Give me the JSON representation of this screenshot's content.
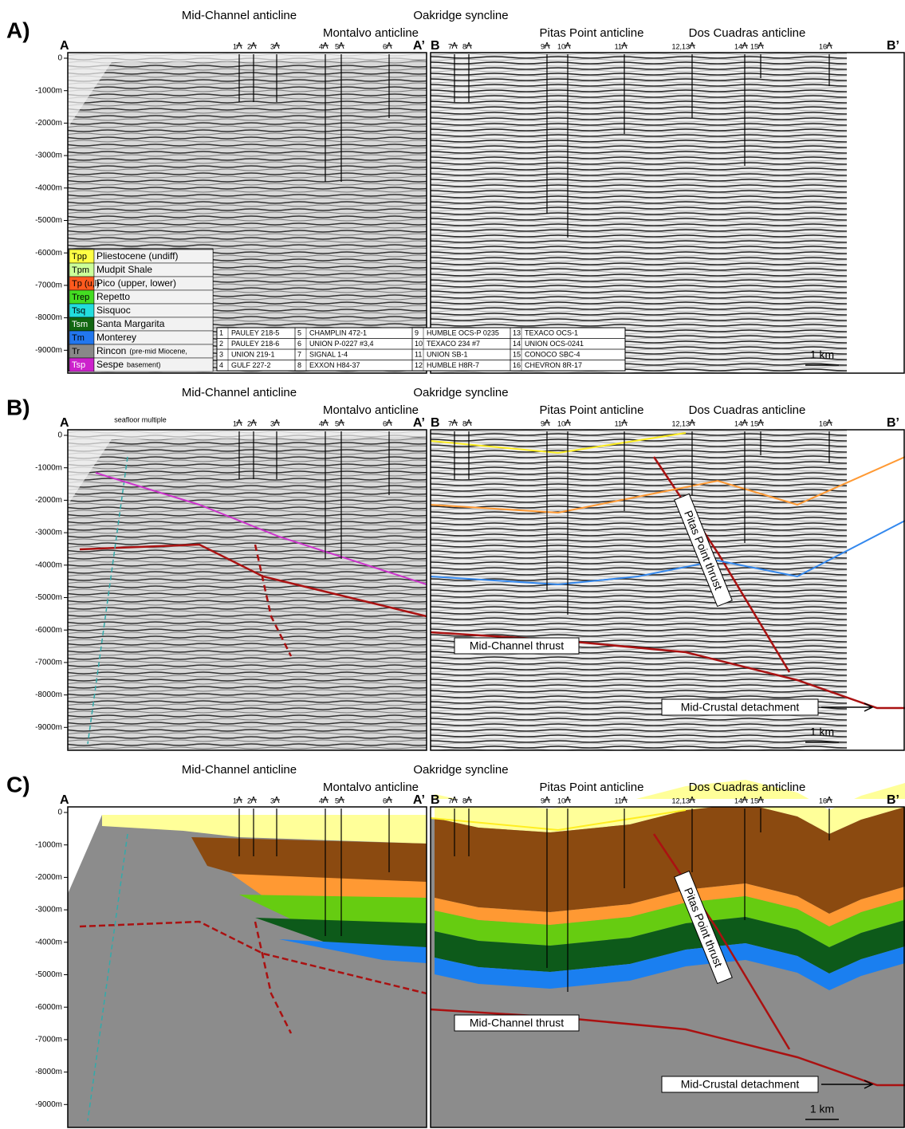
{
  "figure": {
    "panels": [
      {
        "label": "A)"
      },
      {
        "label": "B)"
      },
      {
        "label": "C)"
      }
    ],
    "structures": [
      "Mid-Channel anticline",
      "Montalvo anticline",
      "Oakridge syncline",
      "Pitas Point anticline",
      "Dos Cuadras anticline"
    ],
    "section_ends": [
      "A",
      "A’",
      "B",
      "B’"
    ],
    "depth_ticks": [
      "0",
      "-1000m",
      "-2000m",
      "-3000m",
      "-4000m",
      "-5000m",
      "-6000m",
      "-7000m",
      "-8000m",
      "-9000m"
    ],
    "wells": [
      "1",
      "2",
      "3",
      "4",
      "5",
      "6",
      "7",
      "8",
      "9",
      "10",
      "11",
      "12,13",
      "14",
      "15",
      "16"
    ],
    "scale_bar": "1 km",
    "annotations": {
      "seafloor_multiple": "seafloor multiple",
      "mid_channel_thrust": "Mid-Channel thrust",
      "pitas_point_thrust": "Pitas Point thrust",
      "mid_crustal_detachment": "Mid-Crustal detachment"
    },
    "legend": [
      {
        "code": "Tpp",
        "name": "Pliestocene (undiff)",
        "color": "#ffff44"
      },
      {
        "code": "Tpm",
        "name": "Mudpit Shale",
        "color": "#ccff99"
      },
      {
        "code": "Tp (u,l)",
        "name": "Pico (upper, lower)",
        "color": "#ff5a1e"
      },
      {
        "code": "Trep",
        "name": "Repetto",
        "color": "#44dd22"
      },
      {
        "code": "Tsq",
        "name": "Sisquoc",
        "color": "#22dddd"
      },
      {
        "code": "Tsm",
        "name": "Santa Margarita",
        "color": "#116611"
      },
      {
        "code": "Tm",
        "name": "Monterey",
        "color": "#2277ee"
      },
      {
        "code": "Tr",
        "name": "Rincon",
        "note": "(pre-mid Miocene,",
        "color": "#888888"
      },
      {
        "code": "Tsp",
        "name": "Sespe",
        "note": "basement)",
        "color": "#cc22cc"
      }
    ],
    "well_table": [
      {
        "number": "1",
        "name": "PAULEY 218-5"
      },
      {
        "number": "2",
        "name": "PAULEY 218-6"
      },
      {
        "number": "3",
        "name": "UNION 219-1"
      },
      {
        "number": "4",
        "name": "GULF 227-2"
      },
      {
        "number": "5",
        "name": "CHAMPLIN 472-1"
      },
      {
        "number": "6",
        "name": "UNION P-0227 #3,4"
      },
      {
        "number": "7",
        "name": "SIGNAL 1-4"
      },
      {
        "number": "8",
        "name": "EXXON H84-37"
      },
      {
        "number": "9",
        "name": "HUMBLE OCS-P 0235"
      },
      {
        "number": "10",
        "name": "TEXACO 234 #7"
      },
      {
        "number": "11",
        "name": "UNION SB-1"
      },
      {
        "number": "12",
        "name": "HUMBLE H8R-7"
      },
      {
        "number": "13",
        "name": "TEXACO OCS-1"
      },
      {
        "number": "14",
        "name": "UNION OCS-0241"
      },
      {
        "number": "15",
        "name": "CONOCO SBC-4"
      },
      {
        "number": "16",
        "name": "CHEVRON 8R-17"
      }
    ]
  }
}
